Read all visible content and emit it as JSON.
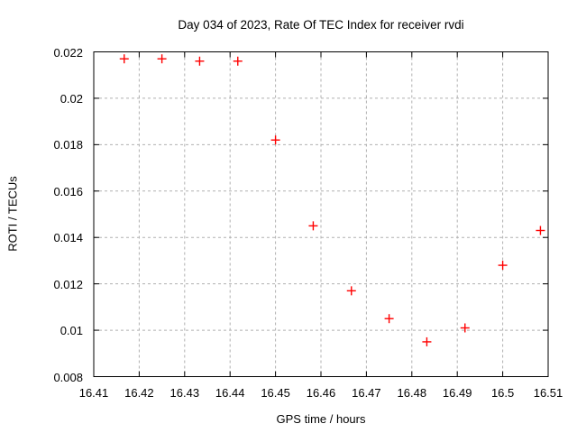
{
  "chart_data": {
    "type": "scatter",
    "title": "Day 034 of 2023, Rate Of TEC Index for receiver rvdi",
    "xlabel": "GPS time / hours",
    "ylabel": "ROTI / TECUs",
    "xlim": [
      16.41,
      16.51
    ],
    "ylim": [
      0.008,
      0.022
    ],
    "xticks": {
      "values": [
        16.41,
        16.42,
        16.43,
        16.44,
        16.45,
        16.46,
        16.47,
        16.48,
        16.49,
        16.5,
        16.51
      ],
      "labels": [
        "16.41",
        "16.42",
        "16.43",
        "16.44",
        "16.45",
        "16.46",
        "16.47",
        "16.48",
        "16.49",
        "16.5",
        "16.51"
      ]
    },
    "yticks": {
      "values": [
        0.008,
        0.01,
        0.012,
        0.014,
        0.016,
        0.018,
        0.02,
        0.022
      ],
      "labels": [
        "0.008",
        "0.01",
        "0.012",
        "0.014",
        "0.016",
        "0.018",
        "0.02",
        "0.022"
      ]
    },
    "grid": true,
    "grid_style": "dashed",
    "legend": "none",
    "marker": "plus",
    "colors": {
      "marker": "#ff0000",
      "grid": "#b0b0b0",
      "axis": "#000000",
      "background": "#ffffff"
    },
    "x": [
      16.4167,
      16.425,
      16.4333,
      16.4417,
      16.45,
      16.4583,
      16.4667,
      16.475,
      16.4833,
      16.4917,
      16.5,
      16.5083
    ],
    "y": [
      0.0217,
      0.0217,
      0.0216,
      0.0216,
      0.0182,
      0.0145,
      0.0117,
      0.0105,
      0.0095,
      0.0101,
      0.0128,
      0.0143
    ]
  }
}
